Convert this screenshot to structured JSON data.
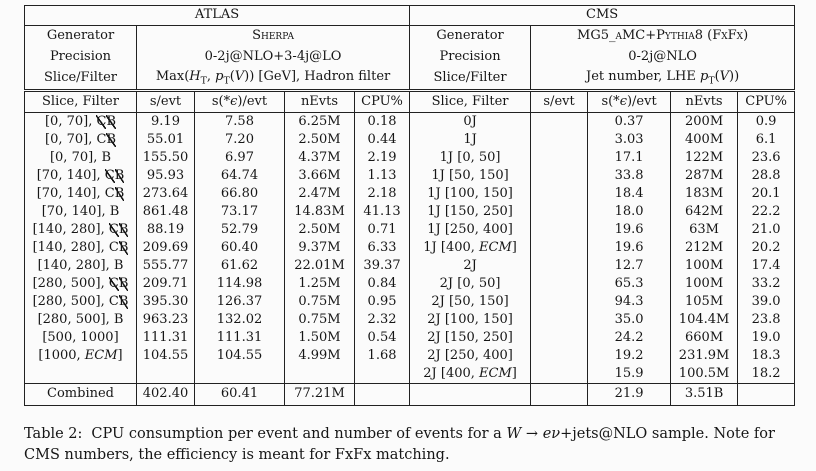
{
  "table": {
    "atlas": {
      "title": "ATLAS",
      "meta_labels": [
        "Generator",
        "Precision",
        "Slice/Filter"
      ],
      "generator": "Sherpa",
      "precision": "0-2j@NLO+3-4j@LO",
      "slice_filter": "Max({i:H}{sub:T}, {i:p}{sub:T}({i:V})) [GeV], Hadron filter",
      "columns": [
        "Slice, Filter",
        "s/evt",
        "s(*{i:ϵ})/evt",
        "nEvts",
        "CPU%"
      ]
    },
    "cms": {
      "title": "CMS",
      "meta_labels": [
        "Generator",
        "Precision",
        "Slice/Filter"
      ],
      "generator": "MG5_aMC+Pythia8 (FxFx)",
      "precision": "0-2j@NLO",
      "slice_filter": "Jet number, LHE {i:p}{sub:T}({i:V}))",
      "columns": [
        "Slice, Filter",
        "s/evt",
        "s(*{i:ϵ})/evt",
        "nEvts",
        "CPU%"
      ]
    },
    "rows": [
      {
        "a": [
          "[0, 70], {x:C}{x:B}",
          "9.19",
          "7.58",
          "6.25M",
          "0.18"
        ],
        "c": [
          "0J",
          "",
          "0.37",
          "200M",
          "0.9"
        ]
      },
      {
        "a": [
          "[0, 70], C{x:B}",
          "55.01",
          "7.20",
          "2.50M",
          "0.44"
        ],
        "c": [
          "1J",
          "",
          "3.03",
          "400M",
          "6.1"
        ]
      },
      {
        "a": [
          "[0, 70], B",
          "155.50",
          "6.97",
          "4.37M",
          "2.19"
        ],
        "c": [
          "1J [0, 50]",
          "",
          "17.1",
          "122M",
          "23.6"
        ]
      },
      {
        "a": [
          "[70, 140], {x:C}{x:B}",
          "95.93",
          "64.74",
          "3.66M",
          "1.13"
        ],
        "c": [
          "1J [50, 150]",
          "",
          "33.8",
          "287M",
          "28.8"
        ]
      },
      {
        "a": [
          "[70, 140], C{x:B}",
          "273.64",
          "66.80",
          "2.47M",
          "2.18"
        ],
        "c": [
          "1J [100, 150]",
          "",
          "18.4",
          "183M",
          "20.1"
        ]
      },
      {
        "a": [
          "[70, 140], B",
          "861.48",
          "73.17",
          "14.83M",
          "41.13"
        ],
        "c": [
          "1J [150, 250]",
          "",
          "18.0",
          "642M",
          "22.2"
        ]
      },
      {
        "a": [
          "[140, 280], {x:C}{x:B}",
          "88.19",
          "52.79",
          "2.50M",
          "0.71"
        ],
        "c": [
          "1J [250, 400]",
          "",
          "19.6",
          "63M",
          "21.0"
        ]
      },
      {
        "a": [
          "[140, 280], C{x:B}",
          "209.69",
          "60.40",
          "9.37M",
          "6.33"
        ],
        "c": [
          "1J [400, {i:ECM}]",
          "",
          "19.6",
          "212M",
          "20.2"
        ]
      },
      {
        "a": [
          "[140, 280], B",
          "555.77",
          "61.62",
          "22.01M",
          "39.37"
        ],
        "c": [
          "2J",
          "",
          "12.7",
          "100M",
          "17.4"
        ]
      },
      {
        "a": [
          "[280, 500], {x:C}{x:B}",
          "209.71",
          "114.98",
          "1.25M",
          "0.84"
        ],
        "c": [
          "2J [0, 50]",
          "",
          "65.3",
          "100M",
          "33.2"
        ]
      },
      {
        "a": [
          "[280, 500], C{x:B}",
          "395.30",
          "126.37",
          "0.75M",
          "0.95"
        ],
        "c": [
          "2J [50, 150]",
          "",
          "94.3",
          "105M",
          "39.0"
        ]
      },
      {
        "a": [
          "[280, 500], B",
          "963.23",
          "132.02",
          "0.75M",
          "2.32"
        ],
        "c": [
          "2J [100, 150]",
          "",
          "35.0",
          "104.4M",
          "23.8"
        ]
      },
      {
        "a": [
          "[500, 1000]",
          "111.31",
          "111.31",
          "1.50M",
          "0.54"
        ],
        "c": [
          "2J [150, 250]",
          "",
          "24.2",
          "660M",
          "19.0"
        ]
      },
      {
        "a": [
          "[1000, {i:ECM}]",
          "104.55",
          "104.55",
          "4.99M",
          "1.68"
        ],
        "c": [
          "2J [250, 400]",
          "",
          "19.2",
          "231.9M",
          "18.3"
        ]
      },
      {
        "a": [
          "",
          "",
          "",
          "",
          ""
        ],
        "c": [
          "2J [400, {i:ECM}]",
          "",
          "15.9",
          "100.5M",
          "18.2"
        ]
      }
    ],
    "combined": {
      "a": [
        "Combined",
        "402.40",
        "60.41",
        "77.21M",
        ""
      ],
      "c": [
        "",
        "",
        "21.9",
        "3.51B",
        ""
      ]
    }
  },
  "caption": {
    "label": "Table 2:",
    "text": "CPU consumption per event and number of events for a {i:W} → {i:eν}+jets@NLO sample. Note for CMS numbers, the efficiency is meant for FxFx matching."
  }
}
